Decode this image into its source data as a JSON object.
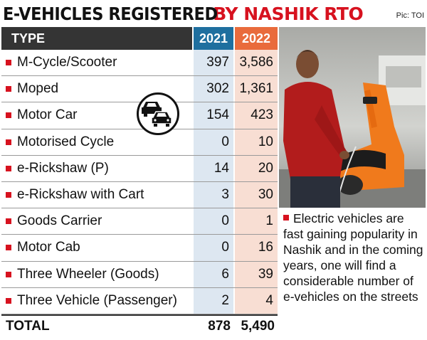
{
  "header": {
    "title_part1": "E-VEHICLES REGISTERED",
    "title_part2": "BY NASHIK RTO",
    "credit": "Pic: TOI"
  },
  "colors": {
    "accent_red": "#d7121f",
    "col_2021": "#1f6f9f",
    "col_2022": "#e96b3c"
  },
  "chart_data": {
    "type": "table",
    "title": "E-VEHICLES REGISTERED BY NASHIK RTO",
    "columns": [
      "TYPE",
      "2021",
      "2022"
    ],
    "rows": [
      {
        "type": "M-Cycle/Scooter",
        "y2021": "397",
        "y2022": "3,586"
      },
      {
        "type": "Moped",
        "y2021": "302",
        "y2022": "1,361"
      },
      {
        "type": "Motor Car",
        "y2021": "154",
        "y2022": "423"
      },
      {
        "type": "Motorised Cycle",
        "y2021": "0",
        "y2022": "10"
      },
      {
        "type": "e-Rickshaw (P)",
        "y2021": "14",
        "y2022": "20"
      },
      {
        "type": "e-Rickshaw with Cart",
        "y2021": "3",
        "y2022": "30"
      },
      {
        "type": "Goods Carrier",
        "y2021": "0",
        "y2022": "1"
      },
      {
        "type": "Motor Cab",
        "y2021": "0",
        "y2022": "16"
      },
      {
        "type": "Three Wheeler (Goods)",
        "y2021": "6",
        "y2022": "39"
      },
      {
        "type": "Three Vehicle (Passenger)",
        "y2021": "2",
        "y2022": "4"
      }
    ],
    "total": {
      "label": "TOTAL",
      "y2021": "878",
      "y2022": "5,490"
    }
  },
  "caption": "Electric vehicles are fast gaining popularity in Nashik and in the coming years, one will find a considerable number of e-vehicles on the streets",
  "icons": [
    "cars-icon",
    "bullet-square-icon"
  ]
}
